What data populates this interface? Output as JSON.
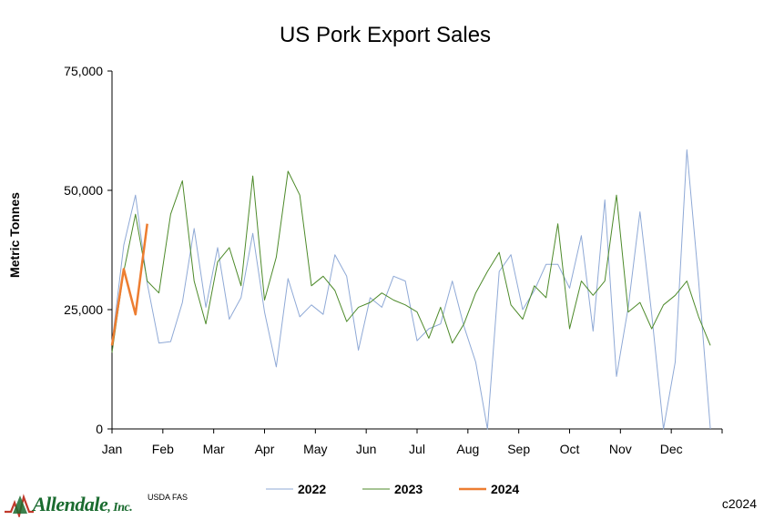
{
  "chart_data": {
    "type": "line",
    "title": "US Pork Export Sales",
    "ylabel": "Metric Tonnes",
    "xlabel": "",
    "ylim": [
      0,
      75000
    ],
    "yticks": [
      0,
      25000,
      50000,
      75000
    ],
    "ytick_labels": [
      "0",
      "25,000",
      "50,000",
      "75,000"
    ],
    "xlim": [
      1,
      53
    ],
    "month_labels": [
      "Jan",
      "Feb",
      "Mar",
      "Apr",
      "May",
      "Jun",
      "Jul",
      "Aug",
      "Sep",
      "Oct",
      "Nov",
      "Dec"
    ],
    "x_unit": "week of year",
    "grid": false,
    "legend_position": "bottom",
    "series": [
      {
        "name": "2022",
        "color": "#8fa9d6",
        "values": [
          18000,
          38500,
          49000,
          30500,
          18000,
          18300,
          26500,
          42000,
          25500,
          38000,
          23000,
          27500,
          41000,
          24500,
          13000,
          31500,
          23500,
          26000,
          24000,
          36500,
          32000,
          16500,
          27500,
          25500,
          32000,
          31000,
          18500,
          21000,
          22000,
          31000,
          21500,
          14000,
          0,
          33000,
          36500,
          25000,
          29000,
          34500,
          34500,
          29500,
          40500,
          20500,
          48000,
          11000,
          25500,
          45500,
          24000,
          0,
          14000,
          58500,
          31000,
          0
        ]
      },
      {
        "name": "2023",
        "color": "#4d8a2a",
        "values": [
          16000,
          33000,
          45000,
          31000,
          28500,
          45000,
          52000,
          31000,
          22000,
          35000,
          38000,
          30000,
          53000,
          27000,
          36000,
          54000,
          49000,
          30000,
          32000,
          29000,
          22500,
          25500,
          26500,
          28500,
          27000,
          26000,
          24500,
          19000,
          25500,
          18000,
          22000,
          28500,
          33000,
          37000,
          26000,
          23000,
          30000,
          27500,
          43000,
          21000,
          31000,
          28000,
          31000,
          49000,
          24500,
          26500,
          21000,
          26000,
          28000,
          31000,
          23500,
          17500
        ]
      },
      {
        "name": "2024",
        "color": "#ed7d31",
        "values": [
          17500,
          33500,
          24000,
          43000
        ]
      }
    ]
  },
  "source": "USDA FAS",
  "copyright": "c2024",
  "logo": {
    "name": "Allendale",
    "suffix": ", Inc."
  }
}
